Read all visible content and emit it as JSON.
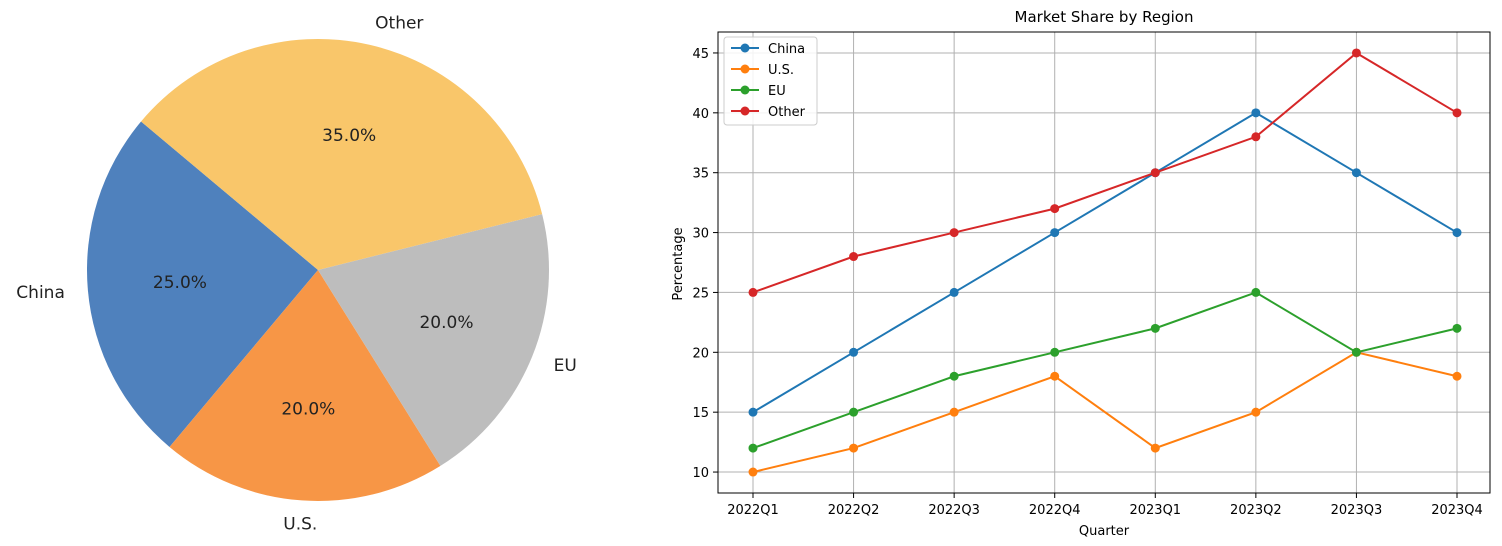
{
  "chart_data": [
    {
      "type": "pie",
      "title": "",
      "categories": [
        "China",
        "U.S.",
        "EU",
        "Other"
      ],
      "values": [
        25.0,
        20.0,
        20.0,
        35.0
      ],
      "pct_labels": [
        "25.0%",
        "20.0%",
        "20.0%",
        "35.0%"
      ],
      "colors": [
        "#4f81bd",
        "#f79646",
        "#bdbdbd",
        "#f9c66a"
      ]
    },
    {
      "type": "line",
      "title": "Market Share by Region",
      "xlabel": "Quarter",
      "ylabel": "Percentage",
      "categories": [
        "2022Q1",
        "2022Q2",
        "2022Q3",
        "2022Q4",
        "2023Q1",
        "2023Q2",
        "2023Q3",
        "2023Q4"
      ],
      "ylim": [
        8.25,
        46.75
      ],
      "yticks": [
        10,
        15,
        20,
        25,
        30,
        35,
        40,
        45
      ],
      "grid": true,
      "legend": "top-left",
      "series": [
        {
          "name": "China",
          "color": "#1f77b4",
          "values": [
            15,
            20,
            25,
            30,
            35,
            40,
            35,
            30
          ]
        },
        {
          "name": "U.S.",
          "color": "#ff7f0e",
          "values": [
            10,
            12,
            15,
            18,
            12,
            15,
            20,
            18
          ]
        },
        {
          "name": "EU",
          "color": "#2ca02c",
          "values": [
            12,
            15,
            18,
            20,
            22,
            25,
            20,
            22
          ]
        },
        {
          "name": "Other",
          "color": "#d62728",
          "values": [
            25,
            28,
            30,
            32,
            35,
            38,
            45,
            40
          ]
        }
      ]
    }
  ]
}
